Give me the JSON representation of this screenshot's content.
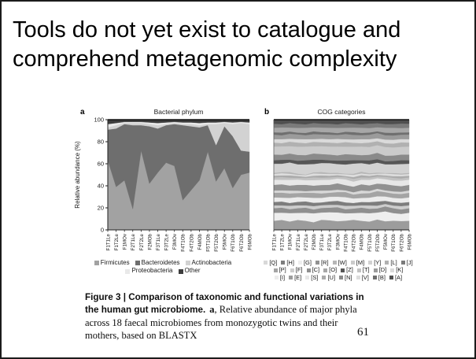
{
  "slide": {
    "title": "Tools do not yet exist to catalogue and comprehend metagenomic complexity",
    "page_number": "61"
  },
  "figure": {
    "caption": {
      "bold_lead": "Figure 3 | Comparison of taxonomic and functional variations in the human gut microbiome.",
      "a_label": "a",
      "rest": ", Relative abundance of major phyla across 18 faecal microbiomes from monozygotic twins and their mothers, based on BLASTX"
    }
  },
  "chart_data": [
    {
      "id": "a",
      "type": "area",
      "stacked": true,
      "stack_order": "bottom_to_top",
      "panel_label": "a",
      "title": "Bacterial phylum",
      "ylabel": "Relative abundance (%)",
      "ylim": [
        0,
        100
      ],
      "yticks": [
        0,
        20,
        40,
        60,
        80,
        100
      ],
      "categories": [
        "F1T1Le",
        "F1T2Le",
        "F1MOv",
        "F2T1Le",
        "F2T2Le",
        "F2MOb",
        "F3T1Le",
        "F3T2Le",
        "F3MOv",
        "F4T1Ob",
        "F4T2Ob",
        "F4MOb",
        "F5T1Ob",
        "F5T2Ob",
        "F5MOv",
        "F6T1Ob",
        "F6T2Ob",
        "F6MOb"
      ],
      "series": [
        {
          "name": "Firmicutes",
          "color": "#a2a2a2",
          "values": [
            63,
            39,
            45,
            19,
            72,
            42,
            52,
            61,
            58,
            27,
            36,
            45,
            71,
            44,
            56,
            38,
            50,
            52
          ]
        },
        {
          "name": "Bacteroidetes",
          "color": "#6e6e6e",
          "values": [
            28,
            53,
            51,
            76,
            23,
            52,
            40,
            34,
            38,
            68,
            58,
            48,
            24,
            33,
            38,
            47,
            22,
            19
          ]
        },
        {
          "name": "Actinobacteria",
          "color": "#d2d2d2",
          "values": [
            2,
            3,
            1,
            2,
            2,
            2,
            3,
            1,
            1,
            1,
            2,
            2,
            1,
            19,
            3,
            11,
            25,
            25
          ]
        },
        {
          "name": "Proteobacteria",
          "color": "#e9e9e9",
          "values": [
            3,
            2,
            1,
            1,
            1,
            1.5,
            2,
            1.5,
            1,
            1.5,
            1.5,
            2,
            1.5,
            1.5,
            1,
            1.5,
            1,
            1.5
          ]
        },
        {
          "name": "Other",
          "color": "#3d3d3d",
          "values": [
            4,
            3,
            2,
            2,
            2,
            2.5,
            3,
            2.5,
            2,
            2.5,
            2.5,
            3,
            2.5,
            2.5,
            2,
            2.5,
            2,
            2.5
          ]
        }
      ],
      "legend": {
        "format": "plain",
        "position": "bottom",
        "rows": [
          [
            "Firmicutes",
            "Bacteroidetes",
            "Actinobacteria"
          ],
          [
            "Proteobacteria",
            "Other"
          ]
        ]
      }
    },
    {
      "id": "b",
      "type": "area",
      "stacked": true,
      "stack_order": "bottom_to_top",
      "panel_label": "b",
      "title": "COG categories",
      "ylabel": "",
      "ylim": [
        0,
        100
      ],
      "categories": [
        "F1T1Le",
        "F1T2Le",
        "F1MOv",
        "F2T1Le",
        "F2T2Le",
        "F2MOb",
        "F3T1Le",
        "F3T2Le",
        "F3MOv",
        "F4T1Ob",
        "F4T2Ob",
        "F4MOb",
        "F5T1Ob",
        "F5T2Ob",
        "F5MOv",
        "F6T1Ob",
        "F6T2Ob",
        "F6MOb"
      ],
      "series": [
        {
          "name": "E",
          "color": "#9c9c9c",
          "values": [
            8,
            9,
            7.5,
            8.5,
            8,
            7,
            9,
            8.5,
            7.5,
            8,
            9,
            8,
            7.5,
            9,
            7,
            8.5,
            8,
            8
          ]
        },
        {
          "name": "G",
          "color": "#eeeeee",
          "values": [
            7,
            6.5,
            7.5,
            6,
            7,
            8,
            6.5,
            7,
            7.5,
            6.5,
            6,
            7,
            7.5,
            6,
            8,
            7,
            6.5,
            7
          ]
        },
        {
          "name": "C",
          "color": "#8f8f8f",
          "values": [
            4,
            4.5,
            3.5,
            4,
            4.5,
            3.5,
            4,
            4,
            4.5,
            3.5,
            4,
            4.5,
            4,
            3.5,
            4,
            4.5,
            4,
            4
          ]
        },
        {
          "name": "F",
          "color": "#cdcdcd",
          "values": [
            2.5,
            2,
            3,
            2.5,
            2,
            3,
            2.5,
            2.5,
            2,
            3,
            2.5,
            2,
            3,
            2.5,
            2,
            2.5,
            3,
            2.5
          ]
        },
        {
          "name": "H",
          "color": "#7d7d7d",
          "values": [
            3,
            3.5,
            2.5,
            3,
            3.5,
            3,
            2.5,
            3,
            3.5,
            3,
            2.5,
            3,
            3,
            3.5,
            2.5,
            3,
            3,
            3
          ]
        },
        {
          "name": "I",
          "color": "#ececec",
          "values": [
            4,
            3.5,
            4.5,
            4,
            3.5,
            4.5,
            4,
            4,
            3.5,
            4.5,
            4,
            3.5,
            4,
            4.5,
            3.5,
            4,
            4,
            4
          ]
        },
        {
          "name": "P",
          "color": "#a4a4a4",
          "values": [
            4,
            4.5,
            4,
            3.5,
            4,
            4.5,
            4,
            3.5,
            4,
            4.5,
            3.5,
            4,
            4,
            4.5,
            3.5,
            4,
            4,
            4
          ]
        },
        {
          "name": "Q",
          "color": "#d8d8d8",
          "values": [
            2,
            2,
            2.5,
            2,
            1.5,
            2,
            2.5,
            2,
            2,
            1.5,
            2,
            2.5,
            2,
            2,
            1.5,
            2,
            2,
            2
          ]
        },
        {
          "name": "R",
          "color": "#919191",
          "values": [
            5,
            5.5,
            4.5,
            5,
            5.5,
            4.5,
            5,
            5,
            5.5,
            4.5,
            5,
            5.5,
            5,
            4.5,
            5,
            5.5,
            5,
            5
          ]
        },
        {
          "name": "S",
          "color": "#e7e7e7",
          "values": [
            4.5,
            4,
            5,
            4.5,
            4,
            5,
            4.5,
            4.5,
            4,
            5,
            4.5,
            4,
            5,
            4.5,
            4,
            4.5,
            5,
            4.5
          ]
        },
        {
          "name": "T",
          "color": "#c2c2c2",
          "values": [
            2,
            2.5,
            2,
            1.5,
            2,
            2.5,
            2,
            2,
            1.5,
            2,
            2.5,
            2,
            2,
            1.5,
            2,
            2.5,
            2,
            2
          ]
        },
        {
          "name": "U",
          "color": "#ababab",
          "values": [
            1.5,
            1.5,
            2,
            1.5,
            1,
            1.5,
            2,
            1.5,
            1.5,
            1,
            1.5,
            2,
            1.5,
            1.5,
            1,
            1.5,
            2,
            1.5
          ]
        },
        {
          "name": "V",
          "color": "#dddddd",
          "values": [
            1.5,
            2,
            1.5,
            1,
            1.5,
            2,
            1.5,
            1.5,
            1,
            1.5,
            2,
            1.5,
            1.5,
            1,
            1.5,
            2,
            1.5,
            1.5
          ]
        },
        {
          "name": "W",
          "color": "#b6b6b6",
          "values": [
            1,
            1,
            1.5,
            1,
            0.5,
            1,
            1.5,
            1,
            1,
            0.5,
            1,
            1.5,
            1,
            1,
            0.5,
            1,
            1,
            1
          ]
        },
        {
          "name": "Y",
          "color": "#d2d2d2",
          "values": [
            8,
            7.5,
            8.5,
            8,
            9,
            7.5,
            8,
            8.5,
            7.5,
            8,
            9,
            7.5,
            8,
            8.5,
            7,
            8,
            8.5,
            8
          ]
        },
        {
          "name": "Z",
          "color": "#565656",
          "values": [
            3,
            3.5,
            2.5,
            3,
            3.5,
            4,
            3,
            2.5,
            3,
            3.5,
            3,
            2.5,
            3.5,
            3,
            2.5,
            3,
            3.5,
            3
          ]
        },
        {
          "name": "N",
          "color": "#8a8a8a",
          "values": [
            5,
            4.5,
            5.5,
            5,
            4.5,
            5.5,
            5,
            5,
            4.5,
            5.5,
            5,
            4.5,
            5,
            5.5,
            4.5,
            5,
            5,
            5
          ]
        },
        {
          "name": "M",
          "color": "#cbcbcb",
          "values": [
            7,
            7.5,
            6.5,
            7,
            7.5,
            6.5,
            7,
            7,
            7.5,
            6.5,
            7,
            7.5,
            7,
            6.5,
            7,
            7.5,
            7,
            7
          ]
        },
        {
          "name": "L",
          "color": "#b1b1b1",
          "values": [
            3.5,
            3,
            4,
            3.5,
            3,
            4,
            3.5,
            3.5,
            3,
            4,
            3.5,
            3,
            4,
            3.5,
            3,
            3.5,
            4,
            3.5
          ]
        },
        {
          "name": "K",
          "color": "#dadada",
          "values": [
            3,
            3.5,
            2.5,
            3,
            3.5,
            2.5,
            3,
            3,
            3.5,
            2.5,
            3,
            3.5,
            3,
            2.5,
            3,
            3.5,
            3,
            3
          ]
        },
        {
          "name": "D",
          "color": "#9b9b9b",
          "values": [
            4,
            3.5,
            4.5,
            4,
            3.5,
            4.5,
            4,
            4,
            3.5,
            4.5,
            4,
            3.5,
            4,
            4.5,
            3.5,
            4,
            4,
            4
          ]
        },
        {
          "name": "B",
          "color": "#6f6f6f",
          "values": [
            2,
            2.5,
            2,
            1.5,
            2,
            2.5,
            2,
            2,
            1.5,
            2,
            2.5,
            2,
            2,
            1.5,
            2,
            2.5,
            2,
            2
          ]
        },
        {
          "name": "O",
          "color": "#a7a7a7",
          "values": [
            4,
            4.5,
            3.5,
            4,
            4.5,
            3.5,
            4,
            4,
            4.5,
            3.5,
            4,
            4.5,
            4,
            3.5,
            4,
            4.5,
            4,
            4
          ]
        },
        {
          "name": "J",
          "color": "#7b7b7b",
          "values": [
            3.5,
            3,
            4,
            3.5,
            3,
            4,
            3.5,
            3.5,
            3,
            4,
            3.5,
            3,
            4,
            3.5,
            3,
            3.5,
            4,
            3.5
          ]
        },
        {
          "name": "A",
          "color": "#4f4f4f",
          "values": [
            3.5,
            4,
            3,
            3.5,
            4,
            3,
            3.5,
            3.5,
            4,
            3,
            3.5,
            4,
            3.5,
            3,
            3.5,
            4,
            3.5,
            3.5
          ]
        }
      ],
      "legend": {
        "format": "bracket",
        "position": "bottom",
        "rows": [
          [
            "Q",
            "H",
            "G",
            "R",
            "W",
            "M",
            "Y",
            "L",
            "J"
          ],
          [
            "P",
            "F",
            "C",
            "O",
            "Z",
            "T",
            "D",
            "K"
          ],
          [
            "I",
            "E",
            "S",
            "U",
            "N",
            "V",
            "B",
            "A"
          ]
        ]
      }
    }
  ]
}
